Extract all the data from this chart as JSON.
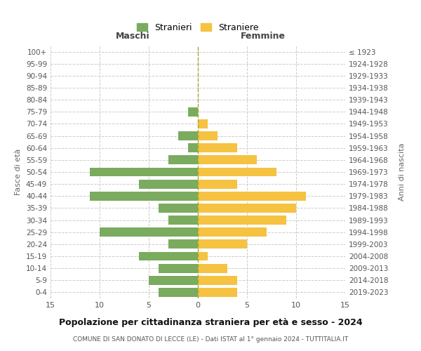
{
  "age_groups": [
    "0-4",
    "5-9",
    "10-14",
    "15-19",
    "20-24",
    "25-29",
    "30-34",
    "35-39",
    "40-44",
    "45-49",
    "50-54",
    "55-59",
    "60-64",
    "65-69",
    "70-74",
    "75-79",
    "80-84",
    "85-89",
    "90-94",
    "95-99",
    "100+"
  ],
  "birth_years": [
    "2019-2023",
    "2014-2018",
    "2009-2013",
    "2004-2008",
    "1999-2003",
    "1994-1998",
    "1989-1993",
    "1984-1988",
    "1979-1983",
    "1974-1978",
    "1969-1973",
    "1964-1968",
    "1959-1963",
    "1954-1958",
    "1949-1953",
    "1944-1948",
    "1939-1943",
    "1934-1938",
    "1929-1933",
    "1924-1928",
    "≤ 1923"
  ],
  "males": [
    4,
    5,
    4,
    6,
    3,
    10,
    3,
    4,
    11,
    6,
    11,
    3,
    1,
    2,
    0,
    1,
    0,
    0,
    0,
    0,
    0
  ],
  "females": [
    4,
    4,
    3,
    1,
    5,
    7,
    9,
    10,
    11,
    4,
    8,
    6,
    4,
    2,
    1,
    0,
    0,
    0,
    0,
    0,
    0
  ],
  "male_color": "#7aab5e",
  "female_color": "#f5c242",
  "background_color": "#ffffff",
  "grid_color": "#cccccc",
  "title": "Popolazione per cittadinanza straniera per età e sesso - 2024",
  "subtitle": "COMUNE DI SAN DONATO DI LECCE (LE) - Dati ISTAT al 1° gennaio 2024 - TUTTITALIA.IT",
  "xlabel_left": "Maschi",
  "xlabel_right": "Femmine",
  "ylabel_left": "Fasce di età",
  "ylabel_right": "Anni di nascita",
  "legend_male": "Stranieri",
  "legend_female": "Straniere",
  "xlim": 15,
  "bar_height": 0.75
}
